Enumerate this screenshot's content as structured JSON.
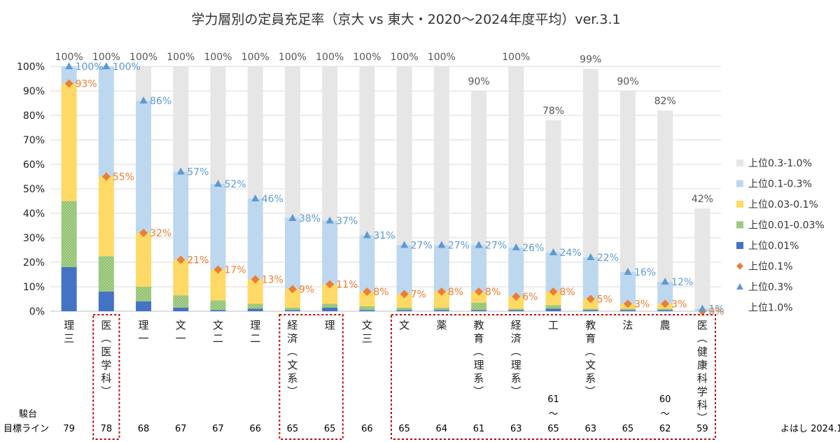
{
  "chart_data": {
    "type": "bar",
    "stacked": true,
    "title": "学力層別の定員充足率（京大 vs 東大・2020〜2024年度平均）ver.3.1",
    "ylim": [
      0,
      100
    ],
    "y_ticks": [
      "0%",
      "10%",
      "20%",
      "30%",
      "40%",
      "50%",
      "60%",
      "70%",
      "80%",
      "90%",
      "100%"
    ],
    "grid": true,
    "legend_position": "right",
    "categories": [
      {
        "label": "理三",
        "sub": ""
      },
      {
        "label": "医",
        "sub": "（医学科）"
      },
      {
        "label": "理一",
        "sub": ""
      },
      {
        "label": "文一",
        "sub": ""
      },
      {
        "label": "文二",
        "sub": ""
      },
      {
        "label": "理二",
        "sub": ""
      },
      {
        "label": "経済",
        "sub": "（文系）"
      },
      {
        "label": "理",
        "sub": ""
      },
      {
        "label": "文三",
        "sub": ""
      },
      {
        "label": "文",
        "sub": ""
      },
      {
        "label": "薬",
        "sub": ""
      },
      {
        "label": "教育",
        "sub": "（理系）"
      },
      {
        "label": "経済",
        "sub": "（理系）"
      },
      {
        "label": "工",
        "sub": ""
      },
      {
        "label": "教育",
        "sub": "（文系）"
      },
      {
        "label": "法",
        "sub": ""
      },
      {
        "label": "農",
        "sub": ""
      },
      {
        "label": "医",
        "sub": "（健康科学科）"
      }
    ],
    "series": [
      {
        "name": "上位0.01%",
        "color": "#4472C4",
        "values": [
          18,
          8,
          4,
          1.5,
          0.5,
          1,
          0.5,
          1.5,
          0.5,
          0.5,
          0.5,
          0.5,
          0.5,
          1,
          0.5,
          0.5,
          0.5,
          0
        ]
      },
      {
        "name": "上位0.01-0.03%",
        "color": "#A9D18E",
        "pattern": true,
        "values": [
          27,
          14.5,
          6,
          5,
          4,
          2,
          1,
          1.5,
          1.5,
          1,
          1,
          3,
          0.5,
          1.5,
          0.5,
          0.5,
          0.5,
          0
        ]
      },
      {
        "name": "上位0.03-0.1%",
        "color": "#FFD966",
        "values": [
          48,
          32.5,
          22,
          14.5,
          12.5,
          10,
          7.5,
          8,
          6,
          5.5,
          6.5,
          4.5,
          5,
          5.5,
          4,
          2,
          2,
          0
        ]
      },
      {
        "name": "上位0.1-0.3%",
        "color": "#BDD7EE",
        "values": [
          7,
          45,
          54,
          36,
          35,
          33,
          29,
          26,
          23,
          20,
          19,
          19,
          20,
          16,
          17,
          13,
          9,
          1
        ]
      },
      {
        "name": "上位0.3-1.0%",
        "color": "#E7E6E6",
        "values": [
          0,
          0,
          14,
          43,
          48,
          54,
          62,
          63,
          69,
          73,
          73,
          63,
          74,
          54,
          77,
          74,
          70,
          41
        ]
      }
    ],
    "markers": [
      {
        "name": "上位0.1%",
        "color": "#ED7D31",
        "shape": "diamond",
        "values": [
          93,
          55,
          32,
          21,
          17,
          13,
          9,
          11,
          8,
          7,
          8,
          8,
          6,
          8,
          5,
          3,
          3,
          0
        ],
        "labels": [
          "93%",
          "55%",
          "32%",
          "21%",
          "17%",
          "13%",
          "9%",
          "11%",
          "8%",
          "7%",
          "8%",
          "8%",
          "6%",
          "8%",
          "5%",
          "3%",
          "3%",
          "0%"
        ]
      },
      {
        "name": "上位0.3%",
        "color": "#5B9BD5",
        "shape": "triangle",
        "values": [
          100,
          100,
          86,
          57,
          52,
          46,
          38,
          37,
          31,
          27,
          27,
          27,
          26,
          24,
          22,
          16,
          12,
          1
        ],
        "labels": [
          "100%",
          "100%",
          "86%",
          "57%",
          "52%",
          "46%",
          "38%",
          "37%",
          "31%",
          "27%",
          "27%",
          "27%",
          "26%",
          "24%",
          "22%",
          "16%",
          "12%",
          "1%"
        ]
      }
    ],
    "totals": {
      "name": "上位1.0%",
      "values": [
        100,
        100,
        100,
        100,
        100,
        100,
        100,
        100,
        100,
        100,
        100,
        90,
        100,
        78,
        99,
        90,
        82,
        42
      ],
      "labels": [
        "100%",
        "100%",
        "100%",
        "100%",
        "100%",
        "100%",
        "100%",
        "100%",
        "100%",
        "100%",
        "100%",
        "90%",
        "100%",
        "78%",
        "99%",
        "90%",
        "82%",
        "42%"
      ]
    },
    "legend": [
      "上位0.3-1.0%",
      "上位0.1-0.3%",
      "上位0.03-0.1%",
      "上位0.01-0.03%",
      "上位0.01%",
      "上位0.1%",
      "上位0.3%",
      "上位1.0%"
    ],
    "bottom_row": {
      "label_top": "駿台",
      "label_bottom": "目標ライン",
      "values": [
        {
          "top": "",
          "mid": "",
          "bottom": "79"
        },
        {
          "top": "",
          "mid": "",
          "bottom": "78"
        },
        {
          "top": "",
          "mid": "",
          "bottom": "68"
        },
        {
          "top": "",
          "mid": "",
          "bottom": "67"
        },
        {
          "top": "",
          "mid": "",
          "bottom": "67"
        },
        {
          "top": "",
          "mid": "",
          "bottom": "66"
        },
        {
          "top": "",
          "mid": "",
          "bottom": "65"
        },
        {
          "top": "",
          "mid": "",
          "bottom": "65"
        },
        {
          "top": "",
          "mid": "",
          "bottom": "66"
        },
        {
          "top": "",
          "mid": "",
          "bottom": "65"
        },
        {
          "top": "",
          "mid": "",
          "bottom": "64"
        },
        {
          "top": "",
          "mid": "",
          "bottom": "61"
        },
        {
          "top": "",
          "mid": "",
          "bottom": "63"
        },
        {
          "top": "61",
          "mid": "〜",
          "bottom": "65"
        },
        {
          "top": "",
          "mid": "",
          "bottom": "63"
        },
        {
          "top": "",
          "mid": "",
          "bottom": "65"
        },
        {
          "top": "60",
          "mid": "〜",
          "bottom": "62"
        },
        {
          "top": "",
          "mid": "",
          "bottom": "59"
        }
      ]
    },
    "highlight_groups": [
      [
        1,
        1
      ],
      [
        6,
        7
      ],
      [
        9,
        17
      ]
    ],
    "credit": "よはし 2024.10"
  }
}
